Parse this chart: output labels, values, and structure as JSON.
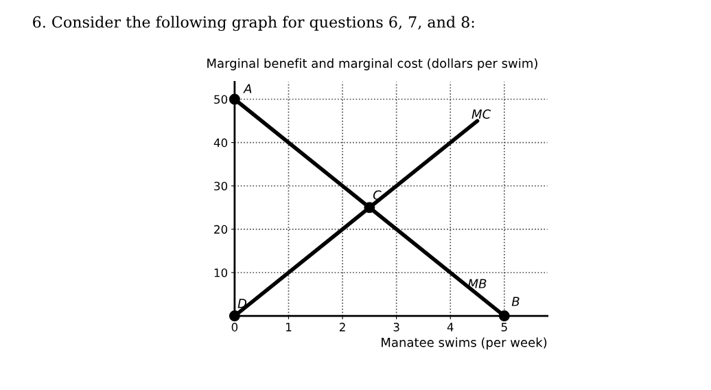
{
  "chart_data": {
    "type": "line",
    "title": "6. Consider the following graph for questions 6, 7, and 8:",
    "ylabel": "Marginal benefit and marginal cost (dollars per swim)",
    "xlabel": "Manatee swims (per week)",
    "series": [
      {
        "x": [
          0,
          5
        ],
        "values": [
          50,
          0
        ],
        "color": "#000000"
      },
      {
        "x": [
          0,
          4.5
        ],
        "values": [
          0,
          45
        ],
        "color": "#000000"
      },
      {
        "type": "scatter",
        "x": [
          0,
          5,
          2.5,
          0
        ],
        "values": [
          50,
          0,
          25,
          0
        ],
        "color": "#000000",
        "marker": "circle"
      }
    ],
    "annotations": [
      {
        "text": "A",
        "x": 0,
        "y": 50
      },
      {
        "text": "B",
        "x": 5,
        "y": 0
      },
      {
        "text": "C",
        "x": 2.5,
        "y": 25
      },
      {
        "text": "D",
        "x": 0,
        "y": 0
      },
      {
        "text": "MC",
        "x": 4.5,
        "y": 45
      },
      {
        "text": "MB",
        "x": 4.5,
        "y": 5
      }
    ],
    "xlim": [
      0,
      5.8
    ],
    "ylim": [
      0,
      54
    ],
    "xticks": [
      0,
      1,
      2,
      3,
      4,
      5
    ],
    "yticks": [
      10,
      20,
      30,
      40,
      50
    ],
    "grid": true,
    "line_style": "solid"
  }
}
